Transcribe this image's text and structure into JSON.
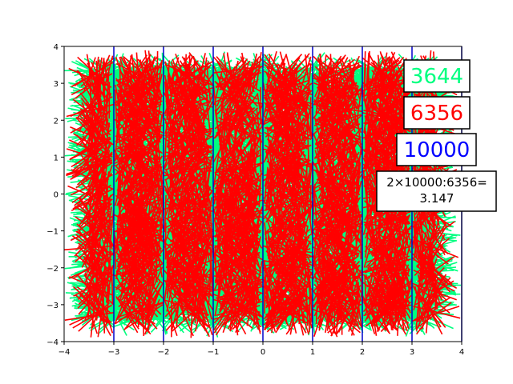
{
  "chart_data": {
    "type": "scatter",
    "title": "",
    "xlabel": "",
    "ylabel": "",
    "xlim": [
      -4,
      4
    ],
    "ylim": [
      -4,
      4
    ],
    "xticks": [
      -4,
      -3,
      -2,
      -1,
      0,
      1,
      2,
      3,
      4
    ],
    "yticks": [
      -4,
      -3,
      -2,
      -1,
      0,
      1,
      2,
      3,
      4
    ],
    "vertical_lines_x": [
      -3,
      -2,
      -1,
      0,
      1,
      2,
      3,
      4
    ],
    "vertical_line_color": "#0000cc",
    "needle_length": 1,
    "series": [
      {
        "color": "#00ff80",
        "count": 3644
      },
      {
        "color": "#ff0000",
        "count": 6356
      }
    ],
    "annotations": {
      "crossing": {
        "text": "3644",
        "color": "#00ff80"
      },
      "non_crossing": {
        "text": "6356",
        "color": "#ff0000"
      },
      "total": {
        "text": "10000",
        "color": "#0000ff"
      },
      "estimate_line1": "2×10000:6356=",
      "estimate_line2": "3.147"
    }
  }
}
